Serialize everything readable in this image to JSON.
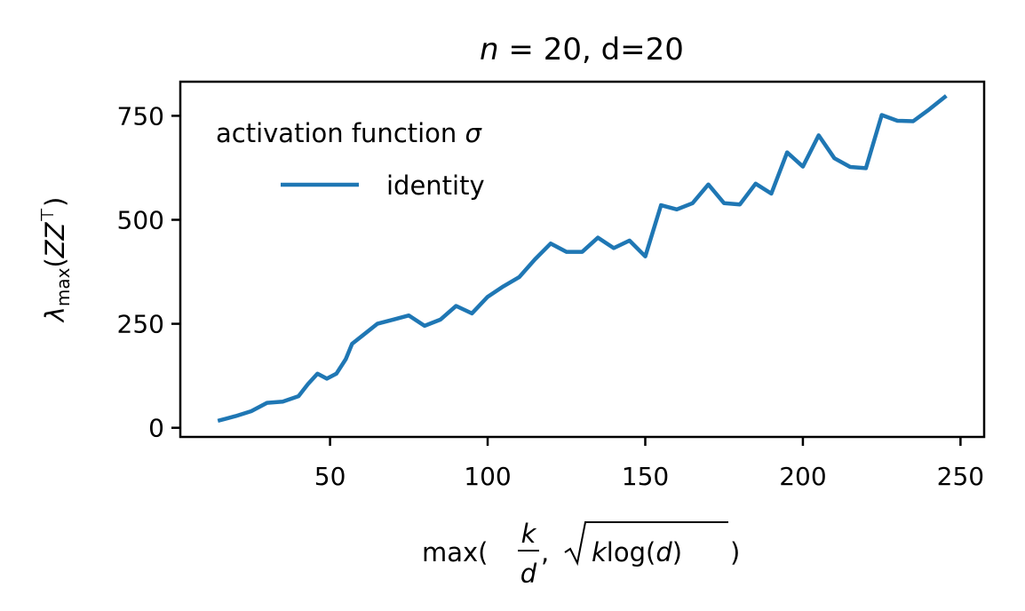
{
  "chart_data": {
    "type": "line",
    "title": {
      "n_symbol": "n",
      "equals": " = 20, d=20"
    },
    "xlabel": {
      "prefix": "max(",
      "frac_num": "k",
      "frac_den": "d",
      "sep": ", ",
      "root_k": "k",
      "root_log": "log(",
      "root_d": "d",
      "root_close": ")",
      "suffix": ")"
    },
    "ylabel": {
      "lambda": "λ",
      "sub": "max",
      "open": "(",
      "zz": "ZZ",
      "sup": "⊤",
      "close": ")"
    },
    "xlim": [
      2.5,
      257.5
    ],
    "ylim": [
      -22,
      832
    ],
    "xticks": [
      50,
      100,
      150,
      200,
      250
    ],
    "yticks": [
      0,
      250,
      500,
      750
    ],
    "grid": false,
    "legend": {
      "title_text": "activation function ",
      "title_symbol": "σ",
      "placement": "top-left"
    },
    "colors": {
      "series": "#1f77b4",
      "axis": "#000000",
      "background": "#ffffff"
    },
    "series": [
      {
        "name": "identity",
        "x": [
          15,
          20,
          25,
          30,
          35,
          40,
          43,
          46,
          49,
          52,
          55,
          57,
          60,
          65,
          70,
          75,
          80,
          85,
          90,
          95,
          100,
          105,
          110,
          115,
          120,
          125,
          130,
          135,
          140,
          145,
          150,
          155,
          160,
          165,
          170,
          175,
          180,
          185,
          190,
          195,
          200,
          205,
          210,
          215,
          220,
          225,
          230,
          235,
          240,
          245
        ],
        "y": [
          18,
          28,
          40,
          60,
          63,
          76,
          105,
          130,
          118,
          130,
          165,
          202,
          220,
          250,
          260,
          270,
          245,
          260,
          293,
          275,
          315,
          340,
          362,
          405,
          443,
          423,
          423,
          457,
          432,
          450,
          412,
          535,
          525,
          540,
          585,
          540,
          537,
          587,
          563,
          662,
          628,
          703,
          648,
          627,
          624,
          752,
          738,
          737,
          765,
          795
        ]
      }
    ]
  }
}
